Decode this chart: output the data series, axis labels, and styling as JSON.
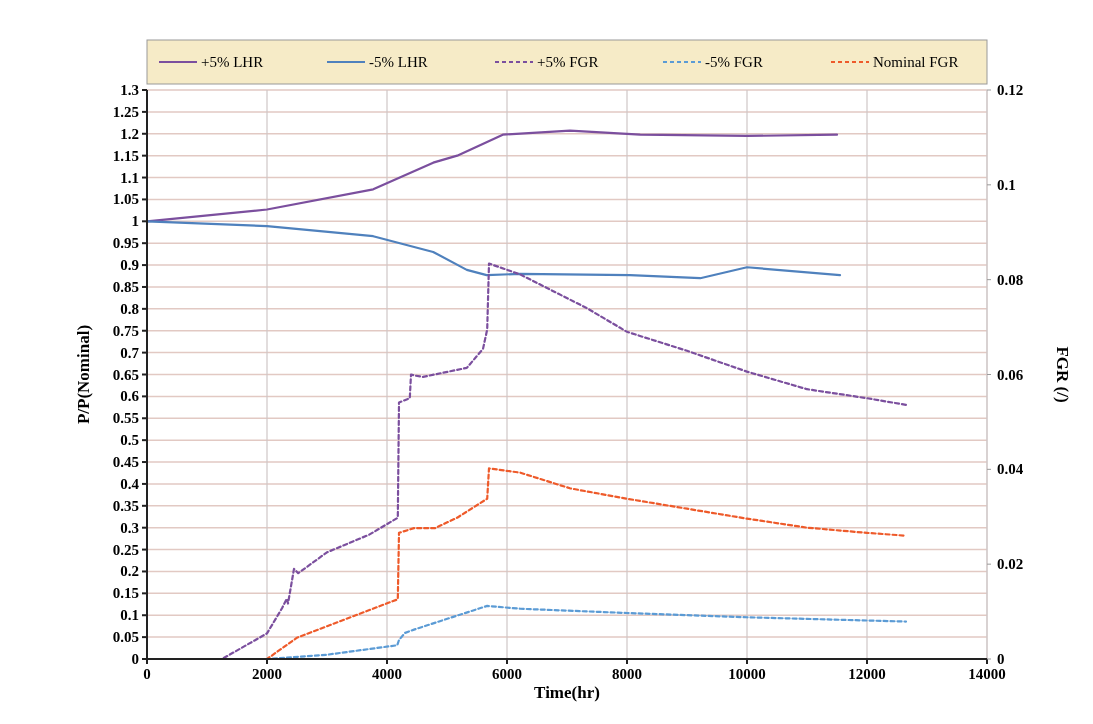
{
  "chart_data": {
    "type": "line",
    "xlabel": "Time(hr)",
    "ylabel": "P/P(Nominal)",
    "y2label": "FGR (/)",
    "xlim": [
      0,
      14000
    ],
    "xticks": [
      0,
      2000,
      4000,
      6000,
      8000,
      10000,
      12000,
      14000
    ],
    "ylim": [
      0,
      1.3
    ],
    "yticks": [
      0,
      0.05,
      0.1,
      0.15,
      0.2,
      0.25,
      0.3,
      0.35,
      0.4,
      0.45,
      0.5,
      0.55,
      0.6,
      0.65,
      0.7,
      0.75,
      0.8,
      0.85,
      0.9,
      0.95,
      1,
      1.05,
      1.1,
      1.15,
      1.2,
      1.25,
      1.3
    ],
    "y2lim": [
      0,
      0.12
    ],
    "y2ticks": [
      0,
      0.02,
      0.04,
      0.06,
      0.08,
      0.1,
      0.12
    ],
    "grid": true,
    "legend": "top",
    "marker": "none",
    "series": [
      {
        "name": "+5% LHR",
        "color": "#7b4f9e",
        "line_style": "solid",
        "x": [
          0,
          2000,
          3770,
          4770,
          5170,
          5930,
          7050,
          8220,
          10000,
          11500
        ],
        "values": [
          1.0,
          1.027,
          1.073,
          1.134,
          1.15,
          1.198,
          1.207,
          1.198,
          1.195,
          1.198
        ]
      },
      {
        "name": "-5% LHR",
        "color": "#4f81bd",
        "line_style": "solid",
        "x": [
          0,
          2000,
          3770,
          4770,
          5330,
          5660,
          6220,
          8050,
          9220,
          10000,
          11550
        ],
        "values": [
          1.0,
          0.989,
          0.966,
          0.93,
          0.889,
          0.877,
          0.88,
          0.877,
          0.87,
          0.895,
          0.877
        ]
      },
      {
        "name": "+5% FGR",
        "color": "#7b4f9e",
        "line_style": "dashed",
        "axis": "y2",
        "x": [
          0,
          1250,
          2000,
          2250,
          2330,
          2350,
          2450,
          2520,
          3000,
          3700,
          4180,
          4200,
          4380,
          4400,
          4450,
          4600,
          5330,
          5600,
          5670,
          5700,
          6220,
          7330,
          8000,
          9000,
          10000,
          11000,
          12000,
          12650
        ],
        "values": [
          0,
          0,
          0.0054,
          0.0107,
          0.0127,
          0.0117,
          0.019,
          0.0181,
          0.0225,
          0.0262,
          0.0298,
          0.0541,
          0.055,
          0.06,
          0.0598,
          0.0595,
          0.0614,
          0.0654,
          0.0695,
          0.0834,
          0.0811,
          0.074,
          0.069,
          0.065,
          0.0606,
          0.0569,
          0.055,
          0.0536
        ]
      },
      {
        "name": "-5% FGR",
        "color": "#5b9bd5",
        "line_style": "dashed",
        "axis": "y2",
        "x": [
          0,
          2000,
          3000,
          4170,
          4200,
          4300,
          4450,
          5670,
          6220,
          8000,
          10000,
          12650
        ],
        "values": [
          0,
          0,
          0.0009,
          0.0029,
          0.004,
          0.0055,
          0.0062,
          0.0112,
          0.0106,
          0.0097,
          0.0088,
          0.0079
        ]
      },
      {
        "name": "Nominal FGR",
        "color": "#ee5a2a",
        "line_style": "dashed",
        "axis": "y2",
        "x": [
          0,
          2000,
          2500,
          4180,
          4200,
          4450,
          4800,
          5170,
          5670,
          5700,
          6220,
          7050,
          8000,
          9000,
          10000,
          11000,
          12000,
          12650
        ],
        "values": [
          0,
          0,
          0.0045,
          0.0126,
          0.0266,
          0.0276,
          0.0276,
          0.0298,
          0.0338,
          0.0402,
          0.0393,
          0.036,
          0.0338,
          0.0317,
          0.0296,
          0.0277,
          0.0266,
          0.026
        ]
      }
    ]
  }
}
